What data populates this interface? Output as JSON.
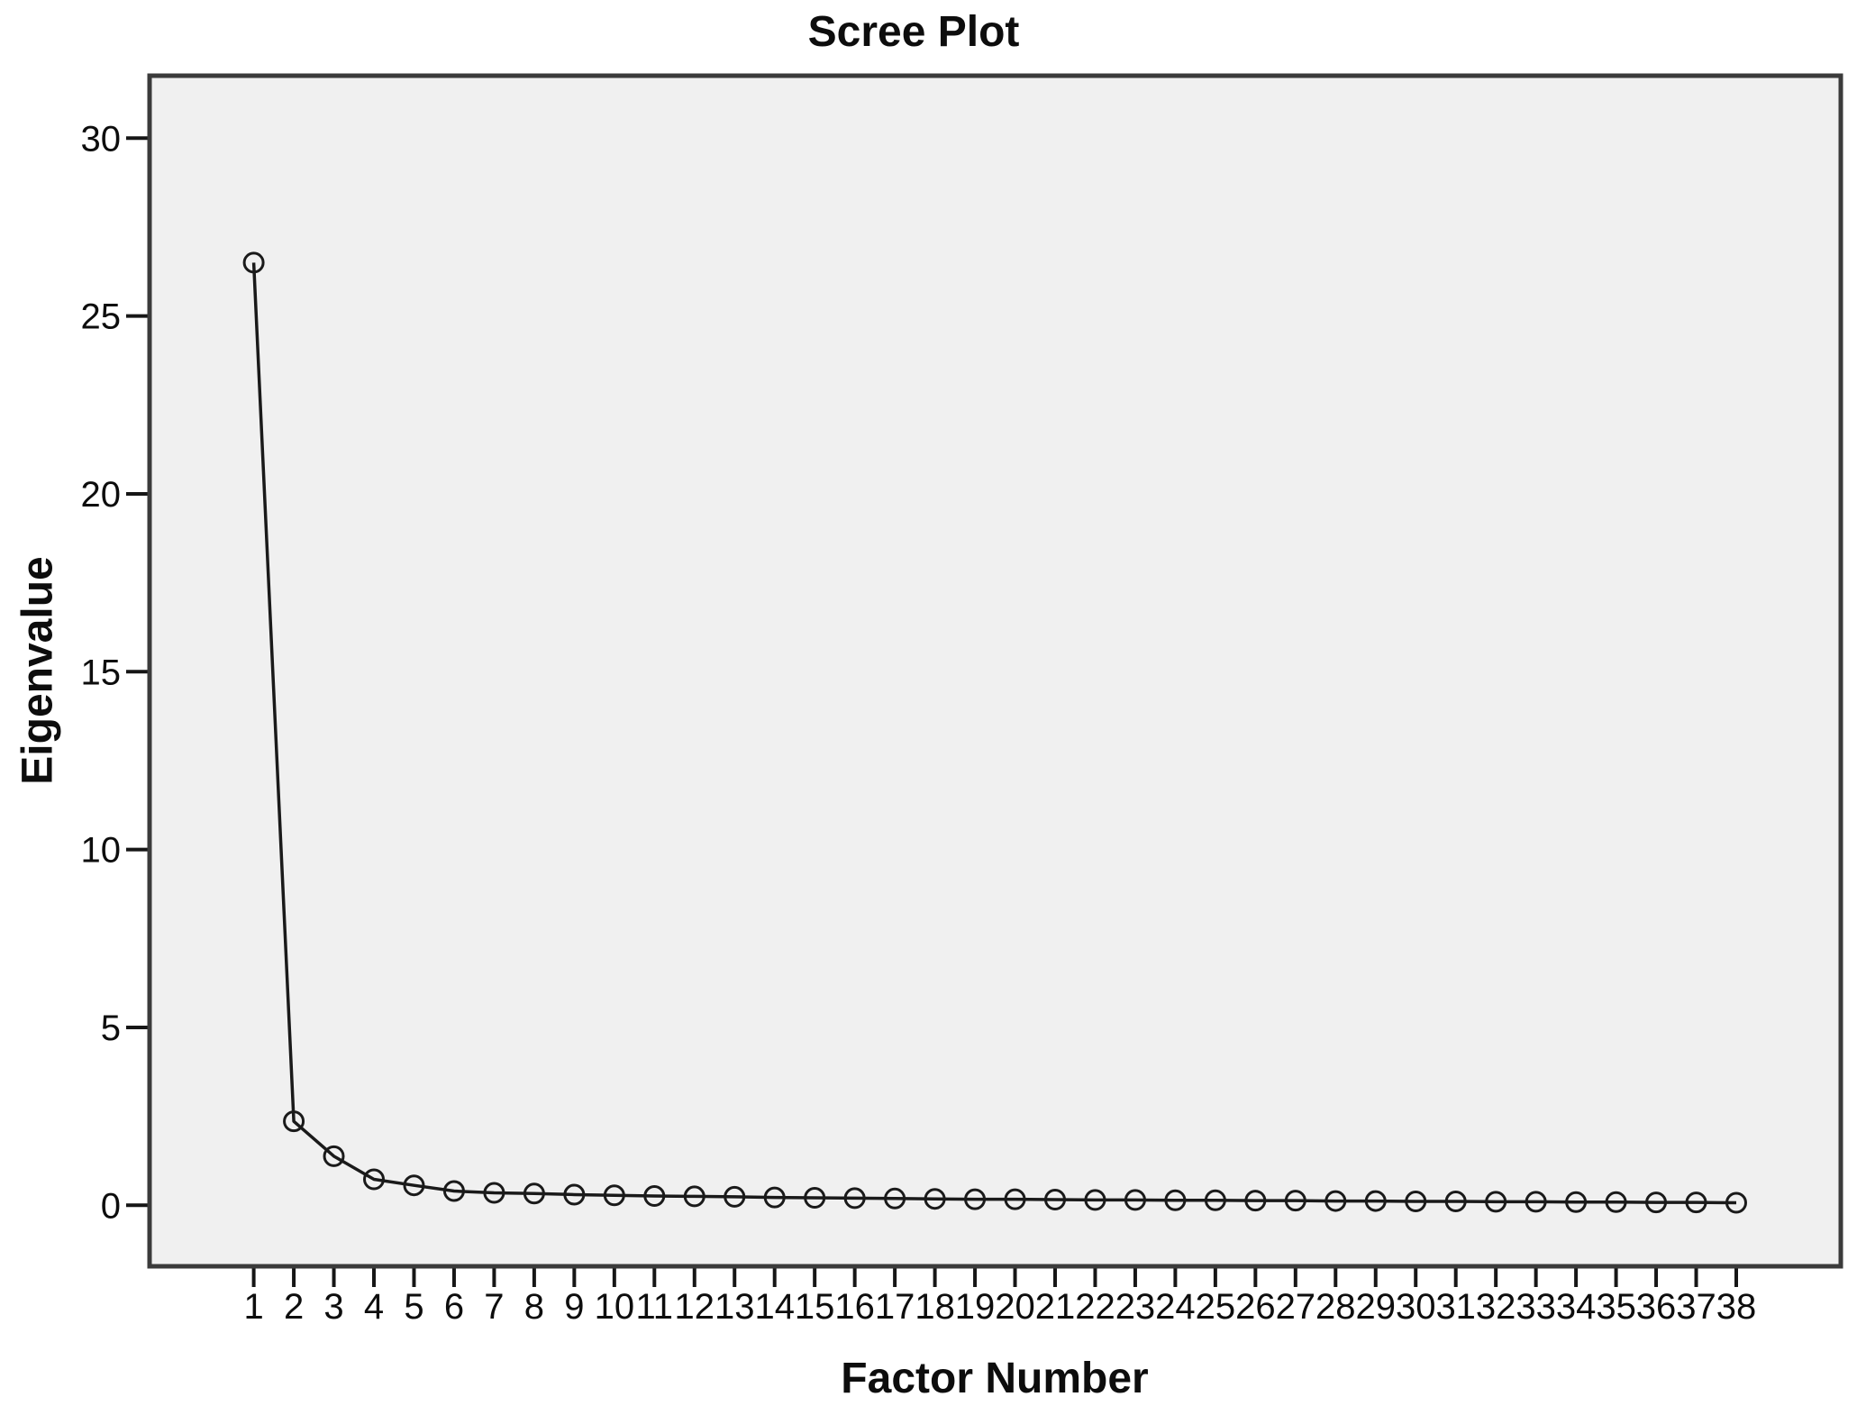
{
  "chart_data": {
    "type": "line",
    "title": "Scree Plot",
    "xlabel": "Factor Number",
    "ylabel": "Eigenvalue",
    "x": [
      1,
      2,
      3,
      4,
      5,
      6,
      7,
      8,
      9,
      10,
      11,
      12,
      13,
      14,
      15,
      16,
      17,
      18,
      19,
      20,
      21,
      22,
      23,
      24,
      25,
      26,
      27,
      28,
      29,
      30,
      31,
      32,
      33,
      34,
      35,
      36,
      37,
      38
    ],
    "series": [
      {
        "name": "Eigenvalue",
        "values": [
          26.5,
          2.36,
          1.38,
          0.73,
          0.56,
          0.4,
          0.35,
          0.33,
          0.3,
          0.28,
          0.26,
          0.25,
          0.24,
          0.22,
          0.21,
          0.2,
          0.19,
          0.18,
          0.17,
          0.17,
          0.16,
          0.15,
          0.15,
          0.14,
          0.14,
          0.13,
          0.13,
          0.12,
          0.12,
          0.11,
          0.11,
          0.1,
          0.1,
          0.09,
          0.09,
          0.08,
          0.08,
          0.07
        ]
      }
    ],
    "y_ticks": [
      0,
      5,
      10,
      15,
      20,
      25,
      30
    ],
    "x_tick_labels": [
      "1",
      "2",
      "3",
      "4",
      "5",
      "6",
      "7",
      "8",
      "9",
      "10",
      "11",
      "12",
      "13",
      "14",
      "15",
      "16",
      "17",
      "18",
      "19",
      "20",
      "21",
      "22",
      "23",
      "24",
      "25",
      "26",
      "27",
      "28",
      "29",
      "30",
      "31",
      "32",
      "33",
      "34",
      "35",
      "36",
      "37",
      "38"
    ],
    "ylim": [
      -1.7,
      31.8
    ],
    "grid": "off",
    "legend": "none",
    "marker": "open-circle",
    "colors": {
      "line": "#1a1a1a",
      "marker_stroke": "#1a1a1a",
      "tick": "#161616",
      "tick_text": "#0d0d0d",
      "plot_bg": "#f0f0f0",
      "plot_border": "#3b3b3b",
      "figure_bg": "#ffffff"
    }
  }
}
